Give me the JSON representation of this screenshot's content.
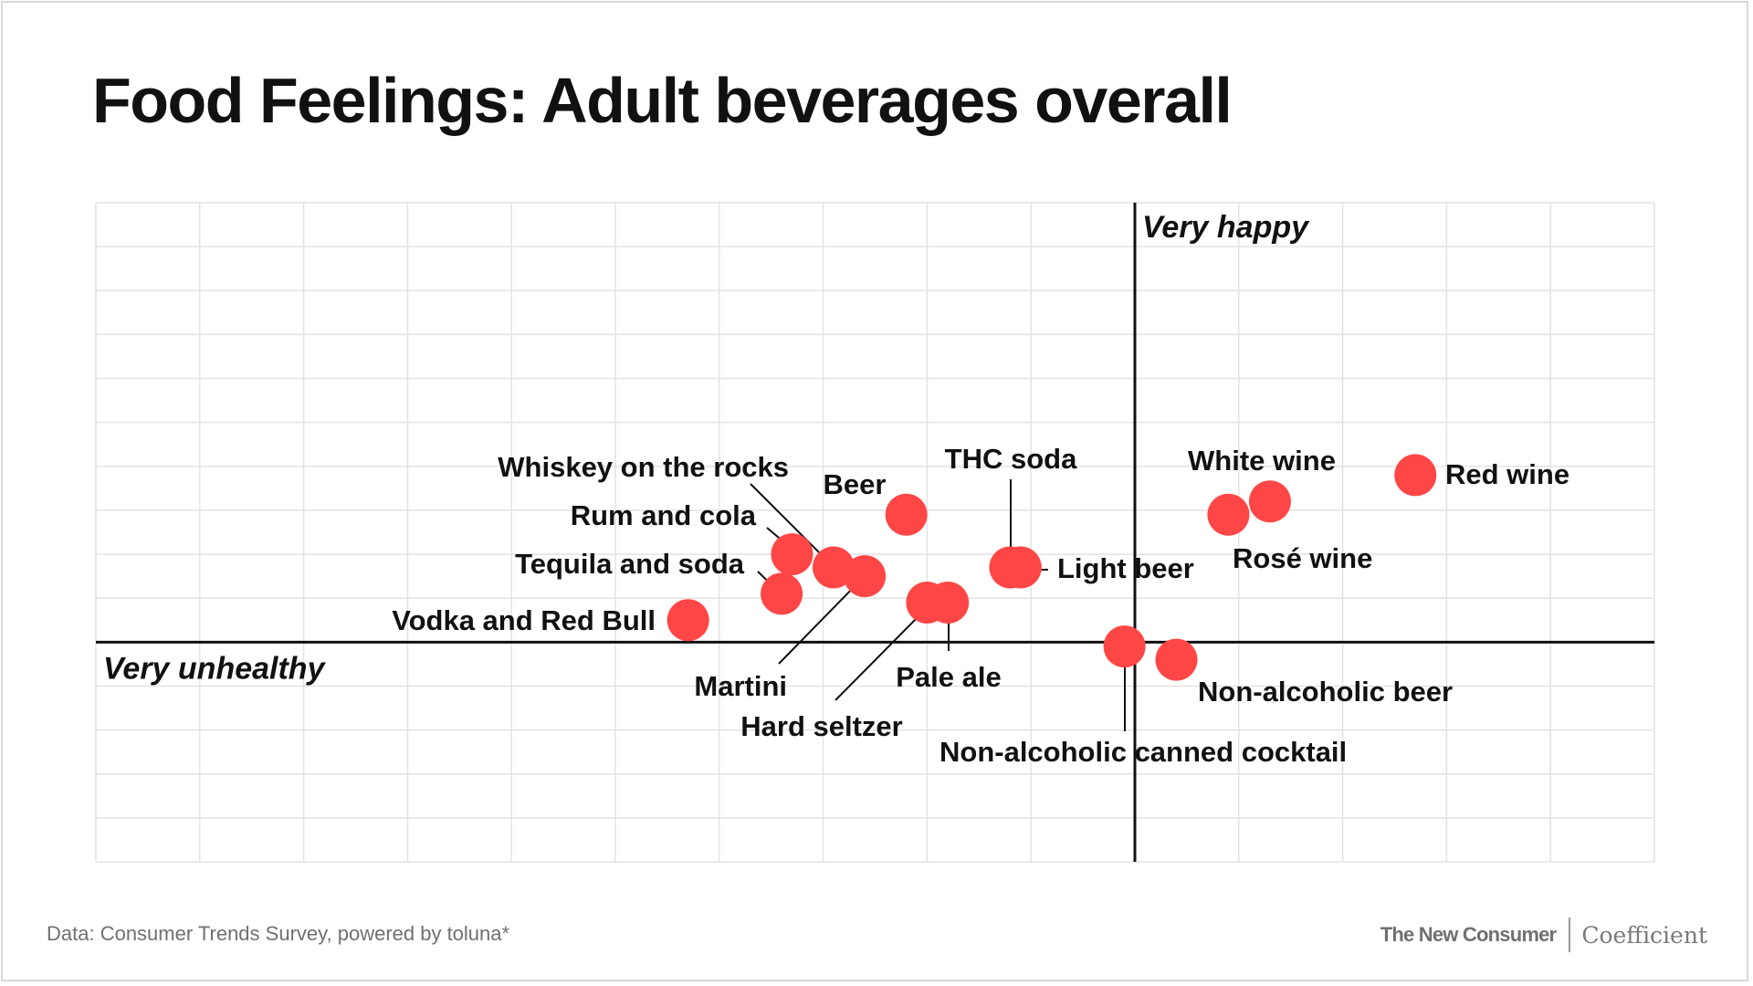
{
  "title": "Food Feelings: Adult beverages overall",
  "source": "Data: Consumer Trends Survey, powered by toluna*",
  "credits": {
    "brand1": "The New Consumer",
    "brand2": "Coefficient"
  },
  "colors": {
    "dot": "#ff4646",
    "grid": "#e3e3e3",
    "axis": "#111111"
  },
  "chart_data": {
    "type": "scatter",
    "title": "Food Feelings: Adult beverages overall",
    "xlabel": "",
    "ylabel": "",
    "x_axis_label": "Very unhealthy",
    "y_axis_label": "Very happy",
    "xlim": [
      -10,
      5
    ],
    "ylim": [
      -5,
      10
    ],
    "axes_cross_at": [
      0,
      0
    ],
    "grid": true,
    "points": [
      {
        "label": "Vodka and Red Bull",
        "x": -4.3,
        "y": 0.5
      },
      {
        "label": "Tequila and soda",
        "x": -3.4,
        "y": 1.1
      },
      {
        "label": "Rum and cola",
        "x": -3.3,
        "y": 2.0
      },
      {
        "label": "Whiskey on the rocks",
        "x": -2.9,
        "y": 1.7
      },
      {
        "label": "Martini",
        "x": -2.6,
        "y": 1.5
      },
      {
        "label": "Beer",
        "x": -2.2,
        "y": 2.9
      },
      {
        "label": "Hard seltzer",
        "x": -2.0,
        "y": 0.9
      },
      {
        "label": "Pale ale",
        "x": -1.8,
        "y": 0.9
      },
      {
        "label": "THC soda",
        "x": -1.2,
        "y": 1.7
      },
      {
        "label": "Light beer",
        "x": -1.1,
        "y": 1.7
      },
      {
        "label": "Non-alcoholic canned cocktail",
        "x": -0.1,
        "y": -0.1
      },
      {
        "label": "Non-alcoholic beer",
        "x": 0.4,
        "y": -0.4
      },
      {
        "label": "Rosé wine",
        "x": 0.9,
        "y": 2.9
      },
      {
        "label": "White wine",
        "x": 1.3,
        "y": 3.2
      },
      {
        "label": "Red wine",
        "x": 2.7,
        "y": 3.8
      }
    ]
  }
}
